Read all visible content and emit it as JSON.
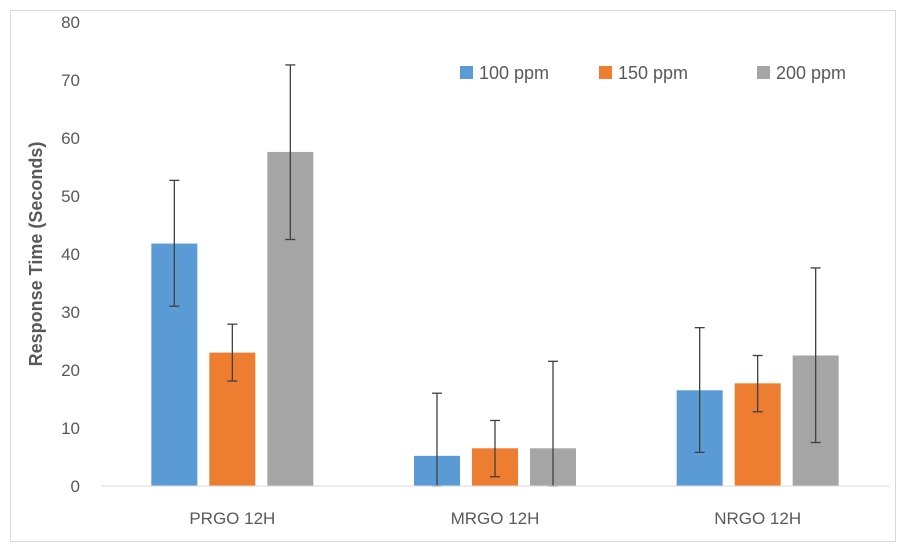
{
  "chart_data": {
    "type": "bar",
    "title": "",
    "xlabel": "",
    "ylabel": "Response Time (Seconds)",
    "ylim": [
      0,
      80
    ],
    "yticks": [
      0,
      10,
      20,
      30,
      40,
      50,
      60,
      70,
      80
    ],
    "grid": false,
    "legend_position": "top-right",
    "categories": [
      "PRGO 12H",
      "MRGO 12H",
      "NRGO 12H"
    ],
    "series": [
      {
        "name": "100 ppm",
        "color": "#5b9bd5",
        "values": [
          41.8,
          5.2,
          16.5
        ],
        "err_low": [
          31.0,
          0.0,
          5.8
        ],
        "err_high": [
          52.7,
          16.0,
          27.3
        ]
      },
      {
        "name": "150 ppm",
        "color": "#ed7d31",
        "values": [
          23.0,
          6.5,
          17.7
        ],
        "err_low": [
          18.1,
          1.6,
          12.8
        ],
        "err_high": [
          27.9,
          11.3,
          22.5
        ]
      },
      {
        "name": "200 ppm",
        "color": "#a5a5a5",
        "values": [
          57.6,
          6.5,
          22.5
        ],
        "err_low": [
          42.5,
          0.0,
          7.5
        ],
        "err_high": [
          72.6,
          21.5,
          37.6
        ]
      }
    ]
  }
}
